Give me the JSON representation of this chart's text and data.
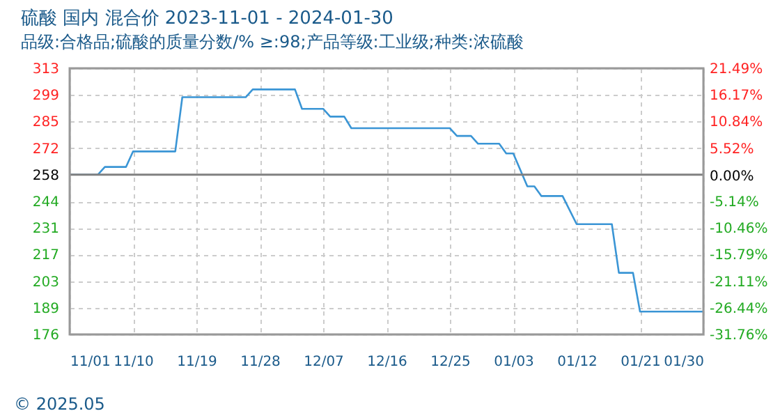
{
  "chart_data": {
    "type": "line",
    "title": "硫酸 国内 混合价 2023-11-01 - 2024-01-30",
    "subtitle": "品级:合格品;硫酸的质量分数/% ≥:98;产品等级:工业级;种类:浓硫酸",
    "annotations": [
      "© 2025.05"
    ],
    "x": [
      "2023-11-01",
      "2023-11-05",
      "2023-11-06",
      "2023-11-09",
      "2023-11-10",
      "2023-11-16",
      "2023-11-17",
      "2023-11-26",
      "2023-11-27",
      "2023-12-03",
      "2023-12-04",
      "2023-12-07",
      "2023-12-08",
      "2023-12-10",
      "2023-12-11",
      "2023-12-25",
      "2023-12-26",
      "2023-12-28",
      "2023-12-29",
      "2024-01-01",
      "2024-01-02",
      "2024-01-03",
      "2024-01-05",
      "2024-01-06",
      "2024-01-07",
      "2024-01-10",
      "2024-01-12",
      "2024-01-17",
      "2024-01-18",
      "2024-01-20",
      "2024-01-21",
      "2024-01-30"
    ],
    "series": [
      {
        "color": "#3a95d5",
        "values": [
          258,
          258,
          262,
          262,
          270,
          270,
          298,
          298,
          302,
          302,
          292,
          292,
          288,
          288,
          282,
          282,
          278,
          278,
          274,
          274,
          269,
          269,
          252,
          252,
          247,
          247,
          232.5,
          232.5,
          207.4,
          207.4,
          187.4,
          187.4
        ]
      }
    ],
    "xlim": [
      "2023-11-01",
      "2024-01-30"
    ],
    "xticks": [
      {
        "value": "2023-11-01",
        "label": "11/01"
      },
      {
        "value": "2023-11-10",
        "label": "11/10"
      },
      {
        "value": "2023-11-19",
        "label": "11/19"
      },
      {
        "value": "2023-11-28",
        "label": "11/28"
      },
      {
        "value": "2023-12-07",
        "label": "12/07"
      },
      {
        "value": "2023-12-16",
        "label": "12/16"
      },
      {
        "value": "2023-12-25",
        "label": "12/25"
      },
      {
        "value": "2024-01-03",
        "label": "01/03"
      },
      {
        "value": "2024-01-12",
        "label": "01/12"
      },
      {
        "value": "2024-01-21",
        "label": "01/21"
      },
      {
        "value": "2024-01-30",
        "label": "01/30"
      }
    ],
    "ylim": [
      175.62,
      312.92
    ],
    "yticks": [
      {
        "value": 312.92,
        "label": "313"
      },
      {
        "value": 299.19,
        "label": "299"
      },
      {
        "value": 285.46,
        "label": "285"
      },
      {
        "value": 271.73,
        "label": "272"
      },
      258,
      {
        "value": 244.27,
        "label": "244"
      },
      {
        "value": 230.54,
        "label": "231"
      },
      {
        "value": 216.81,
        "label": "217"
      },
      {
        "value": 203.08,
        "label": "203"
      },
      {
        "value": 189.35,
        "label": "189"
      },
      {
        "value": 175.62,
        "label": "176"
      }
    ],
    "y2lim": [
      -31.76,
      21.49
    ],
    "y2ticks": [
      {
        "value": 21.49,
        "label": "21.49%"
      },
      {
        "value": 16.17,
        "label": "16.17%"
      },
      {
        "value": 10.84,
        "label": "10.84%"
      },
      {
        "value": 5.52,
        "label": "5.52%"
      },
      {
        "value": 0,
        "label": "0.00%"
      },
      {
        "value": -5.14,
        "label": "-5.14%"
      },
      {
        "value": -10.46,
        "label": "-10.46%"
      },
      {
        "value": -15.79,
        "label": "-15.79%"
      },
      {
        "value": -21.11,
        "label": "-21.11%"
      },
      {
        "value": -26.44,
        "label": "-26.44%"
      },
      {
        "value": -31.76,
        "label": "-31.76%"
      }
    ],
    "ref_lines": [
      {
        "axis": "y",
        "value": 258,
        "color": "#808080"
      }
    ],
    "grid": true,
    "line_style": "solid",
    "marker": "none"
  }
}
